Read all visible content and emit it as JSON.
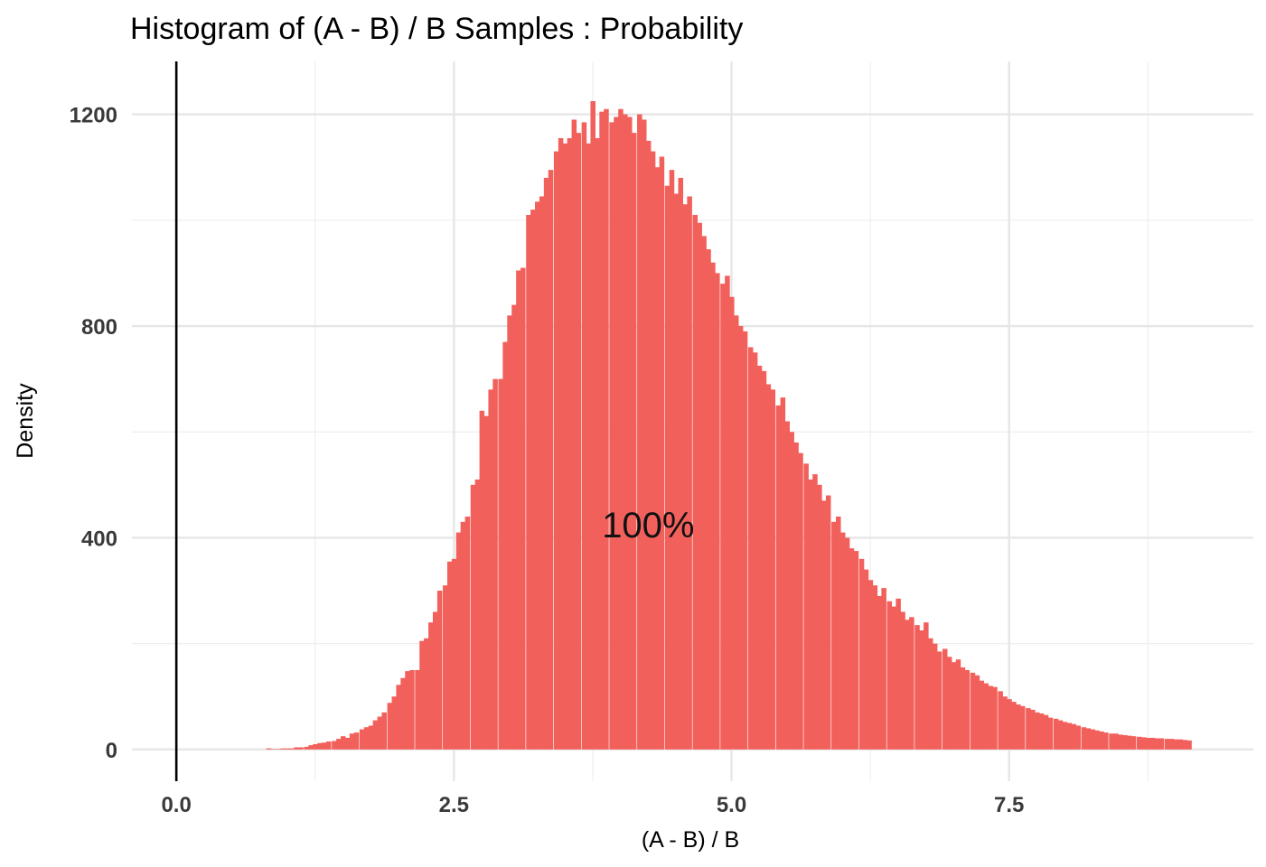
{
  "chart_data": {
    "type": "bar",
    "title": "Histogram of (A - B) / B Samples : Probability",
    "xlabel": "(A - B) / B",
    "ylabel": "Density",
    "xlim": [
      -0.4,
      9.7
    ],
    "ylim": [
      -60,
      1300
    ],
    "x_ticks": [
      0.0,
      2.5,
      5.0,
      7.5
    ],
    "x_tick_labels": [
      "0.0",
      "2.5",
      "5.0",
      "7.5"
    ],
    "x_minor_ticks": [
      1.25,
      3.75,
      6.25,
      8.75
    ],
    "y_ticks": [
      0,
      400,
      800,
      1200
    ],
    "y_tick_labels": [
      "0",
      "400",
      "800",
      "1200"
    ],
    "y_minor_ticks": [
      200,
      600,
      1000
    ],
    "grid": true,
    "legend": "none",
    "bar_color": "#F2605C",
    "reference_line": {
      "x": 0,
      "color": "#000000"
    },
    "annotation": {
      "text": "100%",
      "x": 4.25,
      "y": 425
    },
    "bin_width": 0.0417,
    "bins": [
      [
        0.81,
        2
      ],
      [
        0.85,
        1
      ],
      [
        0.9,
        1
      ],
      [
        0.94,
        2
      ],
      [
        0.98,
        2
      ],
      [
        1.02,
        2
      ],
      [
        1.06,
        4
      ],
      [
        1.1,
        4
      ],
      [
        1.15,
        5
      ],
      [
        1.19,
        8
      ],
      [
        1.23,
        10
      ],
      [
        1.27,
        12
      ],
      [
        1.31,
        13
      ],
      [
        1.35,
        15
      ],
      [
        1.4,
        16
      ],
      [
        1.44,
        20
      ],
      [
        1.48,
        25
      ],
      [
        1.52,
        22
      ],
      [
        1.56,
        30
      ],
      [
        1.6,
        32
      ],
      [
        1.65,
        38
      ],
      [
        1.69,
        42
      ],
      [
        1.73,
        45
      ],
      [
        1.77,
        55
      ],
      [
        1.81,
        62
      ],
      [
        1.85,
        70
      ],
      [
        1.9,
        88
      ],
      [
        1.94,
        100
      ],
      [
        1.98,
        122
      ],
      [
        2.02,
        135
      ],
      [
        2.06,
        148
      ],
      [
        2.1,
        150
      ],
      [
        2.15,
        150
      ],
      [
        2.19,
        205
      ],
      [
        2.23,
        210
      ],
      [
        2.27,
        240
      ],
      [
        2.31,
        260
      ],
      [
        2.35,
        300
      ],
      [
        2.4,
        310
      ],
      [
        2.44,
        355
      ],
      [
        2.48,
        360
      ],
      [
        2.52,
        410
      ],
      [
        2.56,
        430
      ],
      [
        2.6,
        440
      ],
      [
        2.65,
        500
      ],
      [
        2.69,
        510
      ],
      [
        2.73,
        640
      ],
      [
        2.77,
        630
      ],
      [
        2.81,
        680
      ],
      [
        2.85,
        700
      ],
      [
        2.9,
        700
      ],
      [
        2.94,
        770
      ],
      [
        2.98,
        820
      ],
      [
        3.02,
        840
      ],
      [
        3.06,
        905
      ],
      [
        3.1,
        910
      ],
      [
        3.15,
        1010
      ],
      [
        3.19,
        1020
      ],
      [
        3.23,
        1035
      ],
      [
        3.27,
        1045
      ],
      [
        3.31,
        1080
      ],
      [
        3.35,
        1095
      ],
      [
        3.4,
        1130
      ],
      [
        3.44,
        1155
      ],
      [
        3.48,
        1145
      ],
      [
        3.52,
        1155
      ],
      [
        3.56,
        1190
      ],
      [
        3.6,
        1165
      ],
      [
        3.65,
        1185
      ],
      [
        3.69,
        1145
      ],
      [
        3.73,
        1225
      ],
      [
        3.77,
        1155
      ],
      [
        3.81,
        1205
      ],
      [
        3.85,
        1210
      ],
      [
        3.9,
        1185
      ],
      [
        3.94,
        1195
      ],
      [
        3.98,
        1210
      ],
      [
        4.02,
        1200
      ],
      [
        4.06,
        1195
      ],
      [
        4.1,
        1165
      ],
      [
        4.15,
        1200
      ],
      [
        4.19,
        1190
      ],
      [
        4.23,
        1150
      ],
      [
        4.27,
        1130
      ],
      [
        4.31,
        1100
      ],
      [
        4.35,
        1120
      ],
      [
        4.4,
        1065
      ],
      [
        4.44,
        1095
      ],
      [
        4.48,
        1050
      ],
      [
        4.52,
        1080
      ],
      [
        4.56,
        1030
      ],
      [
        4.6,
        1045
      ],
      [
        4.65,
        1010
      ],
      [
        4.69,
        995
      ],
      [
        4.73,
        970
      ],
      [
        4.77,
        945
      ],
      [
        4.81,
        920
      ],
      [
        4.85,
        900
      ],
      [
        4.9,
        880
      ],
      [
        4.94,
        895
      ],
      [
        4.98,
        855
      ],
      [
        5.02,
        820
      ],
      [
        5.06,
        800
      ],
      [
        5.1,
        790
      ],
      [
        5.15,
        760
      ],
      [
        5.19,
        750
      ],
      [
        5.23,
        725
      ],
      [
        5.27,
        715
      ],
      [
        5.31,
        690
      ],
      [
        5.35,
        680
      ],
      [
        5.4,
        650
      ],
      [
        5.44,
        665
      ],
      [
        5.48,
        620
      ],
      [
        5.52,
        600
      ],
      [
        5.56,
        580
      ],
      [
        5.6,
        560
      ],
      [
        5.65,
        540
      ],
      [
        5.69,
        510
      ],
      [
        5.73,
        520
      ],
      [
        5.77,
        500
      ],
      [
        5.81,
        470
      ],
      [
        5.85,
        480
      ],
      [
        5.9,
        430
      ],
      [
        5.94,
        440
      ],
      [
        5.98,
        410
      ],
      [
        6.02,
        400
      ],
      [
        6.06,
        380
      ],
      [
        6.1,
        375
      ],
      [
        6.15,
        360
      ],
      [
        6.19,
        340
      ],
      [
        6.23,
        320
      ],
      [
        6.27,
        310
      ],
      [
        6.31,
        290
      ],
      [
        6.35,
        305
      ],
      [
        6.4,
        280
      ],
      [
        6.44,
        270
      ],
      [
        6.48,
        285
      ],
      [
        6.52,
        260
      ],
      [
        6.56,
        245
      ],
      [
        6.6,
        250
      ],
      [
        6.65,
        235
      ],
      [
        6.69,
        225
      ],
      [
        6.73,
        240
      ],
      [
        6.77,
        210
      ],
      [
        6.81,
        200
      ],
      [
        6.85,
        185
      ],
      [
        6.9,
        190
      ],
      [
        6.94,
        175
      ],
      [
        6.98,
        165
      ],
      [
        7.02,
        170
      ],
      [
        7.06,
        155
      ],
      [
        7.1,
        150
      ],
      [
        7.15,
        145
      ],
      [
        7.19,
        140
      ],
      [
        7.23,
        130
      ],
      [
        7.27,
        125
      ],
      [
        7.31,
        120
      ],
      [
        7.35,
        118
      ],
      [
        7.4,
        110
      ],
      [
        7.44,
        100
      ],
      [
        7.48,
        95
      ],
      [
        7.52,
        90
      ],
      [
        7.56,
        85
      ],
      [
        7.6,
        82
      ],
      [
        7.65,
        78
      ],
      [
        7.69,
        75
      ],
      [
        7.73,
        70
      ],
      [
        7.77,
        68
      ],
      [
        7.81,
        65
      ],
      [
        7.85,
        60
      ],
      [
        7.9,
        58
      ],
      [
        7.94,
        55
      ],
      [
        7.98,
        52
      ],
      [
        8.02,
        50
      ],
      [
        8.06,
        48
      ],
      [
        8.1,
        45
      ],
      [
        8.15,
        42
      ],
      [
        8.19,
        40
      ],
      [
        8.23,
        38
      ],
      [
        8.27,
        36
      ],
      [
        8.31,
        34
      ],
      [
        8.35,
        32
      ],
      [
        8.4,
        30
      ],
      [
        8.44,
        30
      ],
      [
        8.48,
        28
      ],
      [
        8.52,
        27
      ],
      [
        8.56,
        26
      ],
      [
        8.6,
        25
      ],
      [
        8.65,
        24
      ],
      [
        8.69,
        23
      ],
      [
        8.73,
        22
      ],
      [
        8.77,
        22
      ],
      [
        8.81,
        21
      ],
      [
        8.85,
        21
      ],
      [
        8.9,
        20
      ],
      [
        8.94,
        20
      ],
      [
        8.98,
        19
      ],
      [
        9.02,
        19
      ],
      [
        9.06,
        18
      ],
      [
        9.1,
        17
      ]
    ]
  }
}
